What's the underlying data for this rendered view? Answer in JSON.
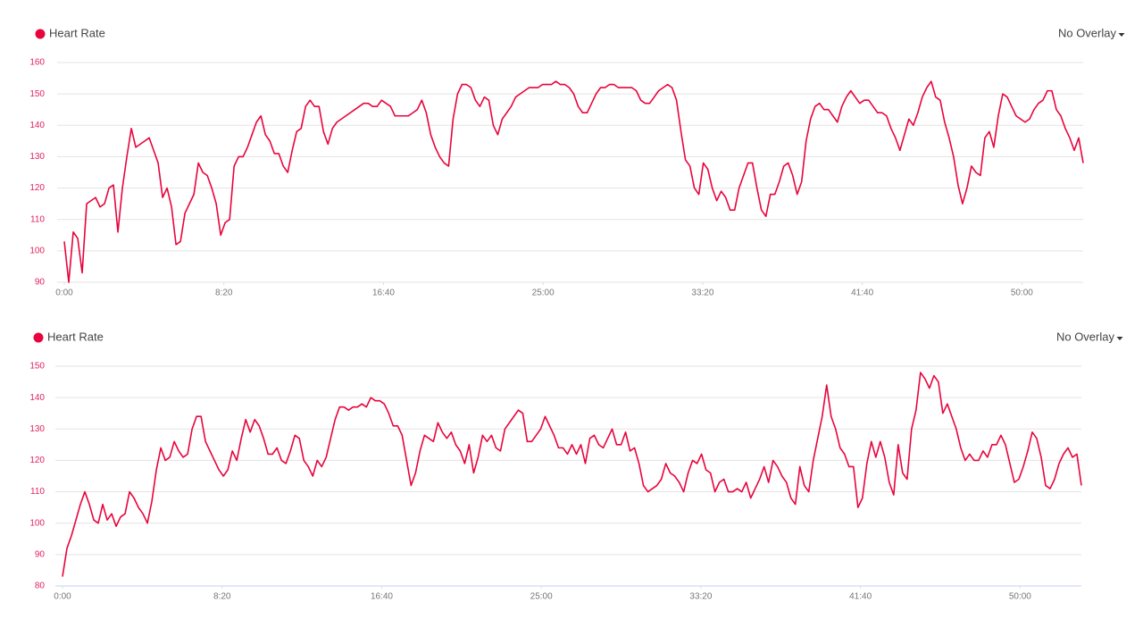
{
  "chart_data": [
    {
      "type": "line",
      "overlay_label": "No Overlay",
      "x": [
        0,
        14,
        28,
        42,
        56,
        70,
        84,
        98,
        112,
        126,
        140,
        154,
        168,
        182,
        196,
        210,
        224,
        238,
        252,
        266,
        280,
        294,
        308,
        322,
        336,
        350,
        364,
        378,
        392,
        406,
        420,
        434,
        448,
        462,
        476,
        490,
        504,
        518,
        532,
        546,
        560,
        574,
        588,
        602,
        616,
        630,
        644,
        658,
        672,
        686,
        700,
        714,
        728,
        742,
        756,
        770,
        784,
        798,
        812,
        826,
        840,
        854,
        868,
        882,
        896,
        910,
        924,
        938,
        952,
        966,
        980,
        994,
        1008,
        1022,
        1036,
        1050,
        1064,
        1078,
        1092,
        1106,
        1120,
        1134,
        1148,
        1162,
        1176,
        1190,
        1204,
        1218,
        1232,
        1246,
        1260,
        1274,
        1288,
        1302,
        1316,
        1330,
        1344,
        1358,
        1372,
        1386,
        1400,
        1414,
        1428,
        1442,
        1456,
        1470,
        1484,
        1498,
        1512,
        1526,
        1540,
        1554,
        1568,
        1582,
        1596,
        1610,
        1624,
        1638,
        1652,
        1666,
        1680,
        1694,
        1708,
        1722,
        1736,
        1750,
        1764,
        1778,
        1792,
        1806,
        1820,
        1834,
        1848,
        1862,
        1876,
        1890,
        1904,
        1918,
        1932,
        1946,
        1960,
        1974,
        1988,
        2002,
        2016,
        2030,
        2044,
        2058,
        2072,
        2086,
        2100,
        2114,
        2128,
        2142,
        2156,
        2170,
        2184,
        2198,
        2212,
        2226,
        2240,
        2254,
        2268,
        2282,
        2296,
        2310,
        2324,
        2338,
        2352,
        2366,
        2380,
        2394,
        2408,
        2422,
        2436,
        2450,
        2464,
        2478,
        2492,
        2506,
        2520,
        2534,
        2548,
        2562,
        2576,
        2590,
        2604,
        2618,
        2632,
        2646,
        2660,
        2674,
        2688,
        2702,
        2716,
        2730,
        2744,
        2758,
        2772,
        2786,
        2800,
        2814,
        2828,
        2842,
        2856,
        2870,
        2884,
        2898,
        2912,
        2926,
        2940,
        2954,
        2968,
        2982,
        2996,
        3010,
        3024,
        3038,
        3052,
        3066,
        3080,
        3094,
        3108,
        3122,
        3136,
        3150,
        3164,
        3178,
        3192
      ],
      "series": [
        {
          "name": "Heart Rate",
          "color": "#e8043c",
          "values": [
            103,
            90,
            106,
            104,
            93,
            115,
            116,
            117,
            114,
            115,
            120,
            121,
            106,
            120,
            130,
            139,
            133,
            134,
            135,
            136,
            132,
            128,
            117,
            120,
            114,
            102,
            103,
            112,
            115,
            118,
            128,
            125,
            124,
            120,
            115,
            105,
            109,
            110,
            127,
            130,
            130,
            133,
            137,
            141,
            143,
            137,
            135,
            131,
            131,
            127,
            125,
            132,
            138,
            139,
            146,
            148,
            146,
            146,
            138,
            134,
            139,
            141,
            142,
            143,
            144,
            145,
            146,
            147,
            147,
            146,
            146,
            148,
            147,
            146,
            143,
            143,
            143,
            143,
            144,
            145,
            148,
            144,
            137,
            133,
            130,
            128,
            127,
            142,
            150,
            153,
            153,
            152,
            148,
            146,
            149,
            148,
            140,
            137,
            142,
            144,
            146,
            149,
            150,
            151,
            152,
            152,
            152,
            153,
            153,
            153,
            154,
            153,
            153,
            152,
            150,
            146,
            144,
            144,
            147,
            150,
            152,
            152,
            153,
            153,
            152,
            152,
            152,
            152,
            151,
            148,
            147,
            147,
            149,
            151,
            152,
            153,
            152,
            148,
            138,
            129,
            127,
            120,
            118,
            128,
            126,
            120,
            116,
            119,
            117,
            113,
            113,
            120,
            124,
            128,
            128,
            120,
            113,
            111,
            118,
            118,
            122,
            127,
            128,
            124,
            118,
            122,
            135,
            142,
            146,
            147,
            145,
            145,
            143,
            141,
            146,
            149,
            151,
            149,
            147,
            148,
            148,
            146,
            144,
            144,
            143,
            139,
            136,
            132,
            137,
            142,
            140,
            144,
            149,
            152,
            154,
            149,
            148,
            141,
            136,
            130,
            121,
            115,
            120,
            127,
            125,
            124,
            136,
            138,
            133,
            143,
            150,
            149,
            146,
            143,
            142,
            141,
            142,
            145,
            147,
            148,
            151,
            151,
            145,
            143,
            139,
            136,
            132,
            136,
            128
          ]
        }
      ],
      "xlim": [
        0,
        3192
      ],
      "xticks": [
        {
          "value": 0,
          "label": "0:00"
        },
        {
          "value": 500,
          "label": "8:20"
        },
        {
          "value": 1000,
          "label": "16:40"
        },
        {
          "value": 1500,
          "label": "25:00"
        },
        {
          "value": 2000,
          "label": "33:20"
        },
        {
          "value": 2500,
          "label": "41:40"
        },
        {
          "value": 3000,
          "label": "50:00"
        }
      ],
      "ylim": [
        90,
        160
      ],
      "yticks": [
        90,
        100,
        110,
        120,
        130,
        140,
        150,
        160
      ],
      "grid": true
    },
    {
      "type": "line",
      "overlay_label": "No Overlay",
      "x": [
        0,
        14,
        28,
        42,
        56,
        70,
        84,
        98,
        112,
        126,
        140,
        154,
        168,
        182,
        196,
        210,
        224,
        238,
        252,
        266,
        280,
        294,
        308,
        322,
        336,
        350,
        364,
        378,
        392,
        406,
        420,
        434,
        448,
        462,
        476,
        490,
        504,
        518,
        532,
        546,
        560,
        574,
        588,
        602,
        616,
        630,
        644,
        658,
        672,
        686,
        700,
        714,
        728,
        742,
        756,
        770,
        784,
        798,
        812,
        826,
        840,
        854,
        868,
        882,
        896,
        910,
        924,
        938,
        952,
        966,
        980,
        994,
        1008,
        1022,
        1036,
        1050,
        1064,
        1078,
        1092,
        1106,
        1120,
        1134,
        1148,
        1162,
        1176,
        1190,
        1204,
        1218,
        1232,
        1246,
        1260,
        1274,
        1288,
        1302,
        1316,
        1330,
        1344,
        1358,
        1372,
        1386,
        1400,
        1414,
        1428,
        1442,
        1456,
        1470,
        1484,
        1498,
        1512,
        1526,
        1540,
        1554,
        1568,
        1582,
        1596,
        1610,
        1624,
        1638,
        1652,
        1666,
        1680,
        1694,
        1708,
        1722,
        1736,
        1750,
        1764,
        1778,
        1792,
        1806,
        1820,
        1834,
        1848,
        1862,
        1876,
        1890,
        1904,
        1918,
        1932,
        1946,
        1960,
        1974,
        1988,
        2002,
        2016,
        2030,
        2044,
        2058,
        2072,
        2086,
        2100,
        2114,
        2128,
        2142,
        2156,
        2170,
        2184,
        2198,
        2212,
        2226,
        2240,
        2254,
        2268,
        2282,
        2296,
        2310,
        2324,
        2338,
        2352,
        2366,
        2380,
        2394,
        2408,
        2422,
        2436,
        2450,
        2464,
        2478,
        2492,
        2506,
        2520,
        2534,
        2548,
        2562,
        2576,
        2590,
        2604,
        2618,
        2632,
        2646,
        2660,
        2674,
        2688,
        2702,
        2716,
        2730,
        2744,
        2758,
        2772,
        2786,
        2800,
        2814,
        2828,
        2842,
        2856,
        2870,
        2884,
        2898,
        2912,
        2926,
        2940,
        2954,
        2968,
        2982,
        2996,
        3010,
        3024,
        3038,
        3052,
        3066,
        3080,
        3094,
        3108,
        3122,
        3136,
        3150,
        3164,
        3178,
        3192
      ],
      "series": [
        {
          "name": "Heart Rate",
          "color": "#e8043c",
          "values": [
            83,
            92,
            96,
            101,
            106,
            110,
            106,
            101,
            100,
            106,
            101,
            103,
            99,
            102,
            103,
            110,
            108,
            105,
            103,
            100,
            107,
            117,
            124,
            120,
            121,
            126,
            123,
            121,
            122,
            130,
            134,
            134,
            126,
            123,
            120,
            117,
            115,
            117,
            123,
            120,
            127,
            133,
            129,
            133,
            131,
            127,
            122,
            122,
            124,
            120,
            119,
            123,
            128,
            127,
            120,
            118,
            115,
            120,
            118,
            121,
            127,
            133,
            137,
            137,
            136,
            137,
            137,
            138,
            137,
            140,
            139,
            139,
            138,
            135,
            131,
            131,
            128,
            120,
            112,
            116,
            123,
            128,
            127,
            126,
            132,
            129,
            127,
            129,
            125,
            123,
            119,
            125,
            116,
            121,
            128,
            126,
            128,
            124,
            123,
            130,
            132,
            134,
            136,
            135,
            126,
            126,
            128,
            130,
            134,
            131,
            128,
            124,
            124,
            122,
            125,
            122,
            125,
            119,
            127,
            128,
            125,
            124,
            127,
            130,
            125,
            125,
            129,
            123,
            124,
            119,
            112,
            110,
            111,
            112,
            114,
            119,
            116,
            115,
            113,
            110,
            116,
            120,
            119,
            122,
            117,
            116,
            110,
            113,
            114,
            110,
            110,
            111,
            110,
            113,
            108,
            111,
            114,
            118,
            113,
            120,
            118,
            115,
            113,
            108,
            106,
            118,
            112,
            110,
            120,
            127,
            134,
            144,
            134,
            130,
            124,
            122,
            118,
            118,
            105,
            108,
            119,
            126,
            121,
            126,
            121,
            113,
            109,
            125,
            116,
            114,
            130,
            136,
            148,
            146,
            143,
            147,
            145,
            135,
            138,
            134,
            130,
            124,
            120,
            122,
            120,
            120,
            123,
            121,
            125,
            125,
            128,
            125,
            119,
            113,
            114,
            118,
            123,
            129,
            127,
            121,
            112,
            111,
            114,
            119,
            122,
            124,
            121,
            122,
            112
          ]
        }
      ],
      "xlim": [
        0,
        3192
      ],
      "xticks": [
        {
          "value": 0,
          "label": "0:00"
        },
        {
          "value": 500,
          "label": "8:20"
        },
        {
          "value": 1000,
          "label": "16:40"
        },
        {
          "value": 1500,
          "label": "25:00"
        },
        {
          "value": 2000,
          "label": "33:20"
        },
        {
          "value": 2500,
          "label": "41:40"
        },
        {
          "value": 3000,
          "label": "50:00"
        }
      ],
      "ylim": [
        80,
        150
      ],
      "yticks": [
        80,
        90,
        100,
        110,
        120,
        130,
        140,
        150
      ],
      "grid": true
    }
  ]
}
